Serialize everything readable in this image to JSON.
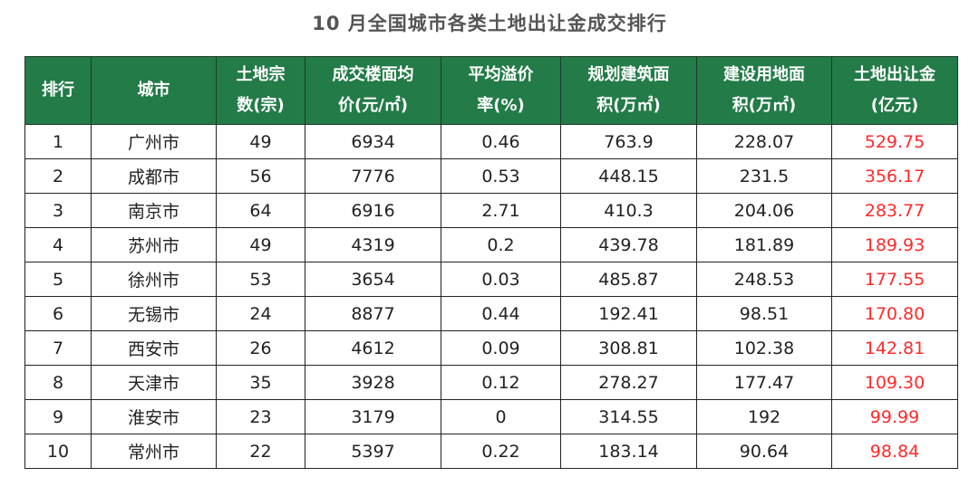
{
  "title": "10 月全国城市各类土地出让金成交排行",
  "chart_data": {
    "type": "table",
    "title": "10 月全国城市各类土地出让金成交排行",
    "highlight_color": "#ff2a2a",
    "header_color": "#237b48",
    "columns": [
      "排行",
      "城市",
      "土地宗数(宗)",
      "成交楼面均价(元/㎡)",
      "平均溢价率(%)",
      "规划建筑面积(万㎡)",
      "建设用地面积(万㎡)",
      "土地出让金(亿元)"
    ],
    "header_lines": [
      [
        "排行"
      ],
      [
        "城市"
      ],
      [
        "土地宗",
        "数(宗)"
      ],
      [
        "成交楼面均",
        "价(元/㎡)"
      ],
      [
        "平均溢价",
        "率(%)"
      ],
      [
        "规划建筑面",
        "积(万㎡)"
      ],
      [
        "建设用地面",
        "积(万㎡)"
      ],
      [
        "土地出让金",
        "(亿元)"
      ]
    ],
    "rows": [
      [
        "1",
        "广州市",
        "49",
        "6934",
        "0.46",
        "763.9",
        "228.07",
        "529.75"
      ],
      [
        "2",
        "成都市",
        "56",
        "7776",
        "0.53",
        "448.15",
        "231.5",
        "356.17"
      ],
      [
        "3",
        "南京市",
        "64",
        "6916",
        "2.71",
        "410.3",
        "204.06",
        "283.77"
      ],
      [
        "4",
        "苏州市",
        "49",
        "4319",
        "0.2",
        "439.78",
        "181.89",
        "189.93"
      ],
      [
        "5",
        "徐州市",
        "53",
        "3654",
        "0.03",
        "485.87",
        "248.53",
        "177.55"
      ],
      [
        "6",
        "无锡市",
        "24",
        "8877",
        "0.44",
        "192.41",
        "98.51",
        "170.80"
      ],
      [
        "7",
        "西安市",
        "26",
        "4612",
        "0.09",
        "308.81",
        "102.38",
        "142.81"
      ],
      [
        "8",
        "天津市",
        "35",
        "3928",
        "0.12",
        "278.27",
        "177.47",
        "109.30"
      ],
      [
        "9",
        "淮安市",
        "23",
        "3179",
        "0",
        "314.55",
        "192",
        "99.99"
      ],
      [
        "10",
        "常州市",
        "22",
        "5397",
        "0.22",
        "183.14",
        "90.64",
        "98.84"
      ]
    ]
  }
}
